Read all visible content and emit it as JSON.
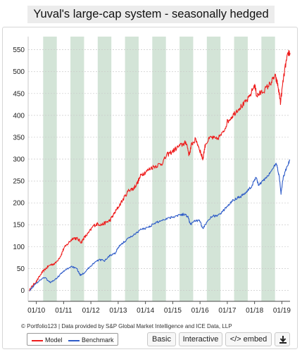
{
  "page": {
    "title": "Yuval's large-cap system - seasonally hedged",
    "credit": "© Portfolio123 | Data provided by S&P Global Market Intelligence and ICE Data, LLP",
    "buttons": {
      "basic": "Basic",
      "interactive": "Interactive",
      "embed": "</> embed",
      "download_icon": "download-icon"
    }
  },
  "chart_data": {
    "type": "line",
    "title": "Yuval's large-cap system - seasonally hedged",
    "xlabel": "",
    "ylabel": "",
    "ylim": [
      -25,
      580
    ],
    "y_ticks": [
      0,
      50,
      100,
      150,
      200,
      250,
      300,
      350,
      400,
      450,
      500,
      550
    ],
    "x_tick_labels": [
      "01/10",
      "01/11",
      "01/12",
      "01/13",
      "01/14",
      "01/15",
      "01/16",
      "01/17",
      "01/18",
      "01/19"
    ],
    "x_range": [
      2009.7,
      2019.3
    ],
    "grid": true,
    "legend_position": "bottom-left",
    "shaded_bands": [
      [
        2010.25,
        2010.75
      ],
      [
        2011.25,
        2011.75
      ],
      [
        2012.25,
        2012.75
      ],
      [
        2013.25,
        2013.75
      ],
      [
        2014.25,
        2014.75
      ],
      [
        2015.25,
        2015.75
      ],
      [
        2016.25,
        2016.75
      ],
      [
        2017.25,
        2017.75
      ],
      [
        2018.25,
        2018.75
      ]
    ],
    "band_color": "#d3e4d7",
    "series": [
      {
        "name": "Model",
        "color": "#ee1c1c",
        "points": [
          [
            2009.75,
            0
          ],
          [
            2009.85,
            10
          ],
          [
            2010.0,
            20
          ],
          [
            2010.2,
            40
          ],
          [
            2010.35,
            50
          ],
          [
            2010.5,
            58
          ],
          [
            2010.7,
            62
          ],
          [
            2010.9,
            80
          ],
          [
            2011.0,
            95
          ],
          [
            2011.2,
            110
          ],
          [
            2011.35,
            120
          ],
          [
            2011.5,
            118
          ],
          [
            2011.65,
            110
          ],
          [
            2011.75,
            120
          ],
          [
            2011.9,
            130
          ],
          [
            2012.1,
            148
          ],
          [
            2012.25,
            152
          ],
          [
            2012.4,
            150
          ],
          [
            2012.55,
            155
          ],
          [
            2012.7,
            160
          ],
          [
            2012.85,
            175
          ],
          [
            2013.0,
            190
          ],
          [
            2013.2,
            210
          ],
          [
            2013.4,
            230
          ],
          [
            2013.55,
            232
          ],
          [
            2013.7,
            245
          ],
          [
            2013.85,
            265
          ],
          [
            2014.0,
            270
          ],
          [
            2014.2,
            280
          ],
          [
            2014.4,
            285
          ],
          [
            2014.6,
            290
          ],
          [
            2014.8,
            310
          ],
          [
            2015.0,
            318
          ],
          [
            2015.2,
            328
          ],
          [
            2015.4,
            335
          ],
          [
            2015.5,
            338
          ],
          [
            2015.6,
            310
          ],
          [
            2015.7,
            335
          ],
          [
            2015.85,
            345
          ],
          [
            2016.0,
            320
          ],
          [
            2016.1,
            300
          ],
          [
            2016.2,
            335
          ],
          [
            2016.4,
            350
          ],
          [
            2016.6,
            345
          ],
          [
            2016.85,
            360
          ],
          [
            2017.0,
            385
          ],
          [
            2017.2,
            400
          ],
          [
            2017.4,
            415
          ],
          [
            2017.6,
            425
          ],
          [
            2017.8,
            440
          ],
          [
            2018.0,
            470
          ],
          [
            2018.08,
            445
          ],
          [
            2018.2,
            450
          ],
          [
            2018.4,
            460
          ],
          [
            2018.6,
            475
          ],
          [
            2018.75,
            490
          ],
          [
            2018.85,
            470
          ],
          [
            2018.95,
            430
          ],
          [
            2019.05,
            480
          ],
          [
            2019.15,
            520
          ],
          [
            2019.25,
            545
          ],
          [
            2019.3,
            540
          ]
        ]
      },
      {
        "name": "Benchmark",
        "color": "#2d5bc8",
        "points": [
          [
            2009.75,
            0
          ],
          [
            2009.9,
            10
          ],
          [
            2010.1,
            22
          ],
          [
            2010.3,
            30
          ],
          [
            2010.5,
            18
          ],
          [
            2010.7,
            25
          ],
          [
            2010.9,
            38
          ],
          [
            2011.1,
            48
          ],
          [
            2011.3,
            55
          ],
          [
            2011.5,
            48
          ],
          [
            2011.6,
            35
          ],
          [
            2011.75,
            40
          ],
          [
            2011.9,
            50
          ],
          [
            2012.1,
            62
          ],
          [
            2012.3,
            70
          ],
          [
            2012.5,
            68
          ],
          [
            2012.7,
            80
          ],
          [
            2012.9,
            85
          ],
          [
            2013.0,
            98
          ],
          [
            2013.2,
            110
          ],
          [
            2013.4,
            120
          ],
          [
            2013.6,
            128
          ],
          [
            2013.8,
            138
          ],
          [
            2014.0,
            142
          ],
          [
            2014.2,
            148
          ],
          [
            2014.4,
            155
          ],
          [
            2014.6,
            160
          ],
          [
            2014.8,
            165
          ],
          [
            2015.0,
            168
          ],
          [
            2015.2,
            172
          ],
          [
            2015.4,
            174
          ],
          [
            2015.55,
            170
          ],
          [
            2015.65,
            150
          ],
          [
            2015.8,
            160
          ],
          [
            2016.0,
            158
          ],
          [
            2016.1,
            140
          ],
          [
            2016.3,
            162
          ],
          [
            2016.5,
            170
          ],
          [
            2016.7,
            172
          ],
          [
            2016.9,
            185
          ],
          [
            2017.1,
            200
          ],
          [
            2017.3,
            210
          ],
          [
            2017.5,
            215
          ],
          [
            2017.7,
            225
          ],
          [
            2017.9,
            238
          ],
          [
            2018.05,
            260
          ],
          [
            2018.15,
            240
          ],
          [
            2018.3,
            250
          ],
          [
            2018.5,
            262
          ],
          [
            2018.7,
            282
          ],
          [
            2018.8,
            290
          ],
          [
            2018.9,
            262
          ],
          [
            2018.97,
            222
          ],
          [
            2019.05,
            258
          ],
          [
            2019.2,
            285
          ],
          [
            2019.3,
            298
          ]
        ]
      }
    ]
  }
}
